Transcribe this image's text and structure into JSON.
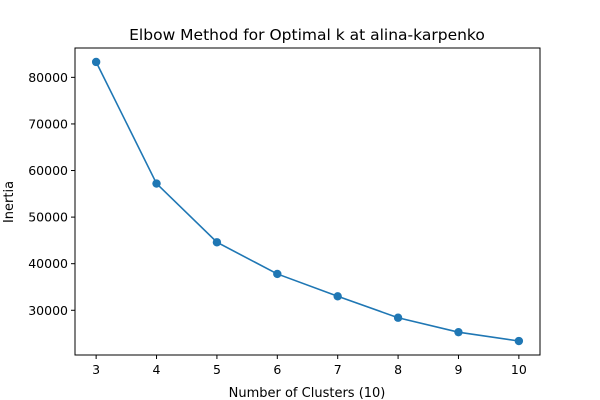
{
  "chart_data": {
    "type": "line",
    "title": "Elbow Method for Optimal k at alina-karpenko",
    "xlabel": "Number of Clusters (10)",
    "ylabel": "Inertia",
    "x": [
      3,
      4,
      5,
      6,
      7,
      8,
      9,
      10
    ],
    "series": [
      {
        "values": [
          83300,
          57200,
          44600,
          37800,
          33000,
          28400,
          25300,
          23400
        ]
      }
    ],
    "xticks": [
      3,
      4,
      5,
      6,
      7,
      8,
      9,
      10
    ],
    "yticks": [
      30000,
      40000,
      50000,
      60000,
      70000,
      80000
    ],
    "xlim": [
      2.65,
      10.35
    ],
    "ylim": [
      20400,
      86300
    ],
    "grid": false,
    "line_color": "#1f77b4",
    "marker": "circle"
  }
}
